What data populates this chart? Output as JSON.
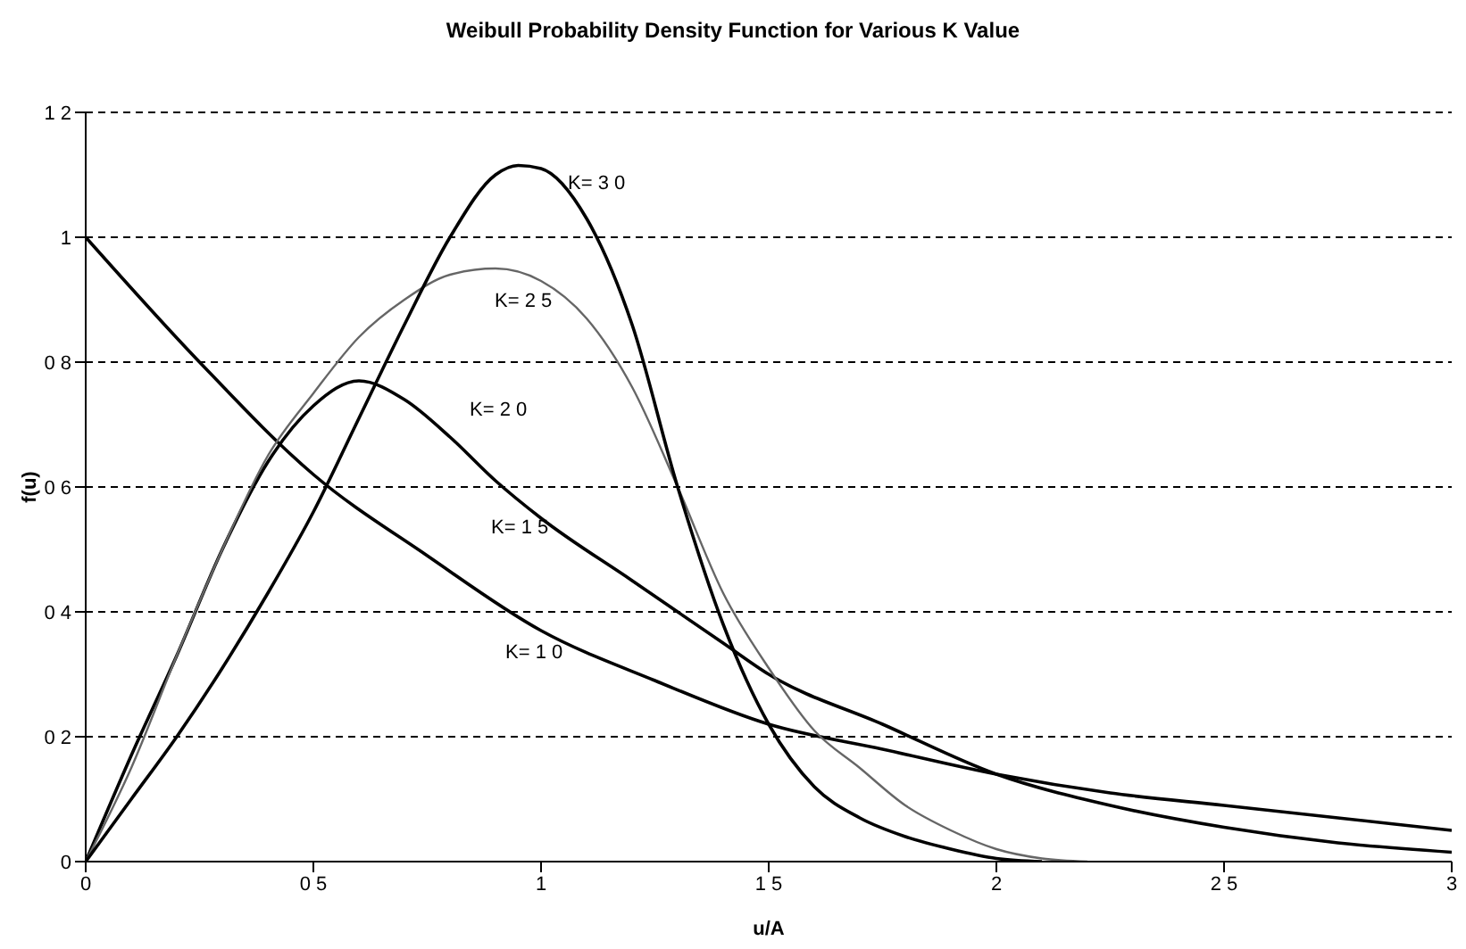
{
  "chart_data": {
    "type": "line",
    "title": "Weibull Probability Density Function for Various K Value",
    "xlabel": "u/A",
    "ylabel": "f(u)",
    "xlim": [
      0,
      3
    ],
    "xticks": [
      0,
      {
        "value": 0.5,
        "label": "0 5"
      },
      1,
      {
        "value": 1.5,
        "label": "1 5"
      },
      2,
      {
        "value": 2.5,
        "label": "2 5"
      },
      3
    ],
    "ylim": [
      0,
      1.2
    ],
    "yticks": [
      0,
      {
        "value": 0.2,
        "label": "0 2"
      },
      {
        "value": 0.4,
        "label": "0 4"
      },
      {
        "value": 0.6,
        "label": "0 6"
      },
      {
        "value": 0.8,
        "label": "0 8"
      },
      1,
      {
        "value": 1.2,
        "label": "1 2"
      }
    ],
    "grid": "y",
    "marker": "none",
    "line_style": "solid",
    "series": [
      {
        "color": "#000000",
        "x": [
          0,
          0.25,
          0.5,
          0.75,
          1,
          1.25,
          1.5,
          1.75,
          2,
          2.25,
          2.5,
          2.75,
          3
        ],
        "values": [
          1,
          0.8,
          0.62,
          0.49,
          0.37,
          0.29,
          0.22,
          0.18,
          0.14,
          0.11,
          0.09,
          0.07,
          0.05
        ]
      },
      {
        "color": "#000000",
        "x": [
          0,
          0.1,
          0.2,
          0.3,
          0.4,
          0.5,
          0.6,
          0.7,
          0.8,
          0.9,
          1,
          1.2,
          1.4,
          1.5,
          1.75,
          2,
          2.25,
          2.5,
          2.75,
          3
        ],
        "values": [
          0,
          0.17,
          0.33,
          0.5,
          0.64,
          0.73,
          0.77,
          0.74,
          0.68,
          0.61,
          0.55,
          0.45,
          0.35,
          0.3,
          0.22,
          0.14,
          0.09,
          0.055,
          0.03,
          0.015
        ]
      },
      {
        "color": "#666666",
        "x": [
          0,
          0.1,
          0.2,
          0.3,
          0.4,
          0.5,
          0.6,
          0.7,
          0.8,
          0.9,
          1,
          1.1,
          1.2,
          1.3,
          1.4,
          1.5,
          1.6,
          1.7,
          1.8,
          1.9,
          2,
          2.1,
          2.2
        ],
        "values": [
          0,
          0.15,
          0.33,
          0.5,
          0.65,
          0.75,
          0.84,
          0.9,
          0.94,
          0.95,
          0.93,
          0.87,
          0.76,
          0.6,
          0.43,
          0.31,
          0.21,
          0.15,
          0.09,
          0.05,
          0.02,
          0.005,
          0
        ]
      },
      {
        "color": "#000000",
        "x": [
          0,
          0.1,
          0.2,
          0.3,
          0.4,
          0.5,
          0.6,
          0.7,
          0.8,
          0.9,
          0.95,
          1,
          1.1,
          1.2,
          1.3,
          1.4,
          1.5,
          1.6,
          1.7,
          1.8,
          1.9,
          2,
          2.1
        ],
        "values": [
          0,
          0.1,
          0.2,
          0.31,
          0.43,
          0.56,
          0.71,
          0.86,
          1,
          1.1,
          1.115,
          1.11,
          1.03,
          0.86,
          0.6,
          0.38,
          0.22,
          0.12,
          0.07,
          0.04,
          0.02,
          0.005,
          0
        ]
      }
    ],
    "annotations": [
      "K= 3 0",
      "K= 2 5",
      "K= 2 0",
      "K= 1 5",
      "K= 1 0"
    ]
  }
}
